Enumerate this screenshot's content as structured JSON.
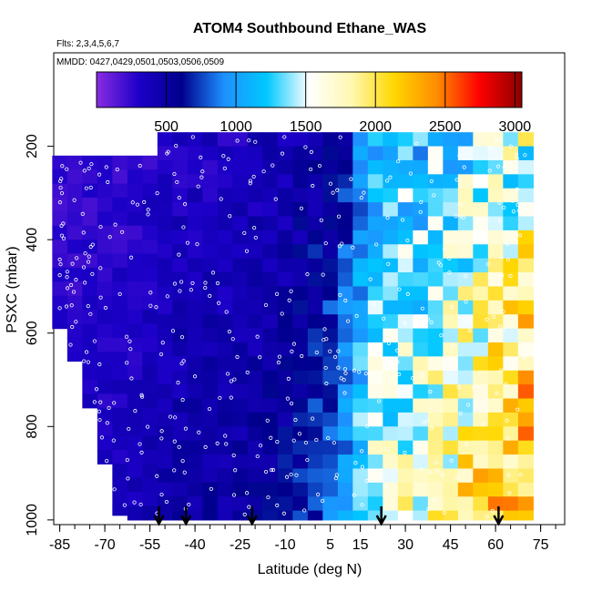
{
  "chart_data": {
    "type": "heatmap",
    "title": "ATOM4 Southbound Ethane_WAS",
    "subtitle_flights": "Flts: 2,3,4,5,6,7",
    "subtitle_dates": "MMDD: 0427,0429,0501,0503,0506,0509",
    "xlabel": "Latitude (deg N)",
    "ylabel": "PSXC (mbar)",
    "xlim": [
      -87,
      83
    ],
    "ylim": [
      1010,
      0
    ],
    "x_ticks": [
      -85,
      -70,
      -55,
      -40,
      -25,
      -10,
      5,
      15,
      30,
      45,
      60,
      75
    ],
    "y_ticks": [
      200,
      400,
      600,
      800,
      1000
    ],
    "colorbar": {
      "min": 0,
      "max": 3050,
      "ticks": [
        500,
        1000,
        1500,
        2000,
        2500,
        3000
      ],
      "colors": [
        "#8a2be2",
        "#1c00c8",
        "#00008c",
        "#1e90ff",
        "#00c8ff",
        "#ffffff",
        "#fff8b0",
        "#ffd700",
        "#ff8c00",
        "#ff0000",
        "#8b0000"
      ]
    },
    "latitude_bins": [
      -85,
      -80,
      -75,
      -70,
      -65,
      -60,
      -55,
      -50,
      -45,
      -40,
      -35,
      -30,
      -25,
      -20,
      -15,
      -10,
      -5,
      0,
      5,
      10,
      15,
      20,
      25,
      30,
      35,
      40,
      45,
      50,
      55,
      60,
      65,
      70
    ],
    "bin_value_profile": [
      280,
      280,
      300,
      300,
      310,
      320,
      360,
      380,
      400,
      410,
      420,
      420,
      440,
      460,
      480,
      500,
      560,
      620,
      700,
      820,
      1100,
      1300,
      1350,
      1400,
      1450,
      1500,
      1550,
      1650,
      1700,
      1800,
      1900,
      1950
    ],
    "profile_start_mbar": [
      220,
      220,
      220,
      220,
      220,
      220,
      220,
      170,
      170,
      170,
      170,
      170,
      170,
      170,
      170,
      170,
      170,
      170,
      170,
      170,
      170,
      170,
      170,
      170,
      170,
      170,
      170,
      170,
      170,
      170,
      170,
      170
    ],
    "profile_end_mbar": [
      590,
      660,
      760,
      880,
      990,
      1000,
      1000,
      1000,
      1000,
      1000,
      1000,
      1000,
      1000,
      1000,
      1000,
      1000,
      1000,
      1000,
      1000,
      1000,
      1000,
      1000,
      1000,
      1000,
      1000,
      1000,
      1000,
      1000,
      1000,
      1000,
      1000,
      1000
    ],
    "takeoff_landing_latitudes": [
      -52,
      -43,
      -21,
      22,
      61
    ]
  }
}
